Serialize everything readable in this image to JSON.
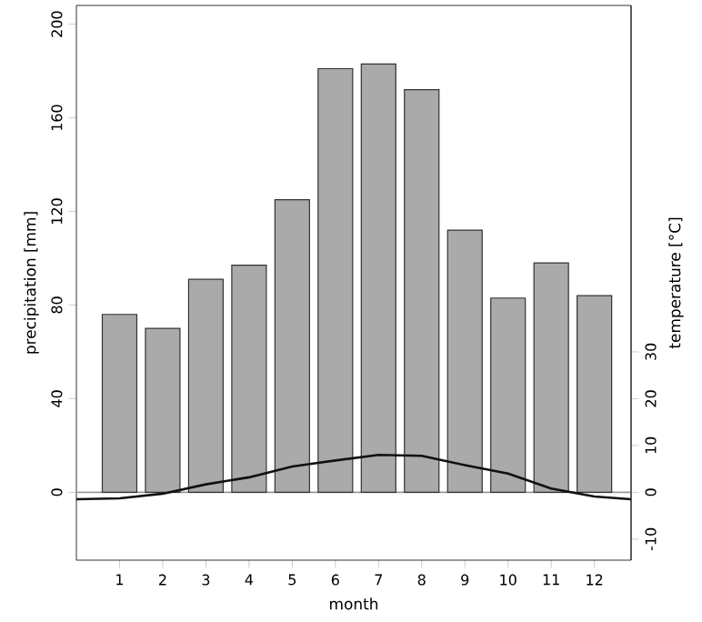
{
  "chart_data": {
    "type": "bar",
    "xlabel": "month",
    "ylabel": "precipitation [mm]",
    "y2label": "temperature [°C]",
    "x": [
      1,
      2,
      3,
      4,
      5,
      6,
      7,
      8,
      9,
      10,
      11,
      12
    ],
    "series": [
      {
        "color": "#aaaaaa",
        "values": [
          76,
          70,
          91,
          97,
          125,
          181,
          183,
          172,
          112,
          83,
          98,
          84
        ]
      },
      {
        "type": "line",
        "axis": "y2",
        "color": "#111111",
        "x": [
          0,
          1,
          2,
          3,
          4,
          5,
          6,
          7,
          8,
          9,
          10,
          11,
          12,
          12.85
        ],
        "values": [
          -1.5,
          -1.3,
          -0.3,
          1.7,
          3.2,
          5.5,
          6.8,
          8.0,
          7.8,
          5.8,
          4.0,
          0.8,
          -0.9,
          -1.5
        ]
      }
    ],
    "marker": "none",
    "xlim": [
      0,
      12.85
    ],
    "xticks": [
      1,
      2,
      3,
      4,
      5,
      6,
      7,
      8,
      9,
      10,
      11,
      12
    ],
    "ylim": [
      -29,
      208
    ],
    "yticks": [
      0,
      40,
      80,
      120,
      160,
      200
    ],
    "y2lim": [
      -14.5,
      104
    ],
    "y2ticks": [
      -10,
      0,
      10,
      20,
      30
    ],
    "ref_lines": [
      {
        "axis": "y",
        "value": 0,
        "color": "#999999"
      }
    ]
  }
}
